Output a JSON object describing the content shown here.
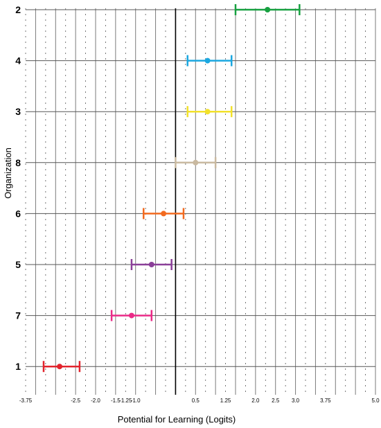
{
  "chart_data": {
    "type": "errorbar",
    "title": "",
    "xlabel": "Potential for Learning (Logits)",
    "ylabel": "Organization",
    "xlim": [
      -3.75,
      5.0
    ],
    "x_tick_labels": [
      {
        "value": -3.75,
        "label": "-3.75"
      },
      {
        "value": -2.5,
        "label": "-2.5"
      },
      {
        "value": -2.0,
        "label": "-2.0"
      },
      {
        "value": -1.5,
        "label": "-1.5"
      },
      {
        "value": -1.25,
        "label": "-1.25"
      },
      {
        "value": -1.0,
        "label": "-1.0"
      },
      {
        "value": 0.5,
        "label": "0.5"
      },
      {
        "value": 1.25,
        "label": "1.25"
      },
      {
        "value": 2.0,
        "label": "2.0"
      },
      {
        "value": 2.5,
        "label": "2.5"
      },
      {
        "value": 3.0,
        "label": "3.0"
      },
      {
        "value": 3.75,
        "label": "3.75"
      },
      {
        "value": 5.0,
        "label": "5.0"
      }
    ],
    "minor_step": 0.25,
    "major_step": 0.5,
    "zero_line": true,
    "grid": true,
    "categories": [
      "2",
      "4",
      "3",
      "8",
      "6",
      "5",
      "7",
      "1"
    ],
    "points": [
      {
        "category": "2",
        "estimate": 2.3,
        "lower": 1.5,
        "upper": 3.1,
        "color": "#17a040"
      },
      {
        "category": "4",
        "estimate": 0.8,
        "lower": 0.3,
        "upper": 1.4,
        "color": "#1aa7e0"
      },
      {
        "category": "3",
        "estimate": 0.8,
        "lower": 0.3,
        "upper": 1.4,
        "color": "#f2e12a"
      },
      {
        "category": "8",
        "estimate": 0.5,
        "lower": 0.0,
        "upper": 1.0,
        "color": "#c9b9a0"
      },
      {
        "category": "6",
        "estimate": -0.3,
        "lower": -0.8,
        "upper": 0.2,
        "color": "#f26a1f"
      },
      {
        "category": "5",
        "estimate": -0.6,
        "lower": -1.1,
        "upper": -0.1,
        "color": "#8a3f98"
      },
      {
        "category": "7",
        "estimate": -1.1,
        "lower": -1.6,
        "upper": -0.6,
        "color": "#ea2a87"
      },
      {
        "category": "1",
        "estimate": -2.9,
        "lower": -3.3,
        "upper": -2.4,
        "color": "#e2232c"
      }
    ]
  }
}
